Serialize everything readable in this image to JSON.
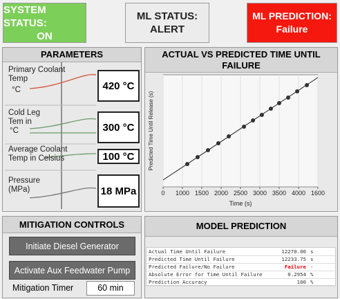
{
  "status": {
    "system": {
      "label": "SYSTEM STATUS:",
      "value": "ON"
    },
    "ml": {
      "label": "ML STATUS:",
      "value": "ALERT"
    },
    "prediction": {
      "label": "ML PREDICTION:",
      "value": "Failure"
    }
  },
  "parameters": {
    "title": "PARAMETERS",
    "items": [
      {
        "label": "Primary Coolant Temp",
        "unit": "°C",
        "value": "420 °C"
      },
      {
        "label": "Cold Leg Tem in",
        "unit": "°C",
        "value": "300 °C"
      },
      {
        "label": "Average Coolant Temp in Celsius",
        "value": "100 °C"
      },
      {
        "label": "Pressure (MPa)",
        "value": "18 MPa"
      }
    ]
  },
  "chart_data": {
    "type": "scatter",
    "title": "ACTUAL VS PREDICTED TIME UNTIL FAILURE",
    "x_label": "Time (s)",
    "y_label": "Predicted Time Until Release (s)",
    "x": [
      250,
      357,
      464,
      571,
      679,
      836,
      929,
      1021,
      1114,
      1200,
      1293,
      1386,
      1486
    ],
    "values": [
      326,
      425,
      523,
      622,
      721,
      859,
      948,
      1027,
      1116,
      1195,
      1274,
      1363,
      1452
    ],
    "color": "#333333",
    "xlim": [
      0,
      1600
    ],
    "ylim": [
      0,
      1600
    ],
    "xticks": [
      0,
      {
        "value": 200,
        "label": "1000"
      },
      {
        "value": 400,
        "label": "1500"
      },
      {
        "value": 600,
        "label": "2000"
      },
      {
        "value": 800,
        "label": "2500"
      },
      {
        "value": 1000,
        "label": "3000"
      },
      {
        "value": 1200,
        "label": "3500"
      },
      {
        "value": 1400,
        "label": "4000"
      },
      1600
    ],
    "grid": true
  },
  "mitigation": {
    "title": "MITIGATION CONTROLS",
    "buttons": [
      "Initiate Diesel Generator",
      "Activate Aux Feedwater Pump"
    ],
    "timer_label": "Mitigation Timer",
    "timer_value": "60 min"
  },
  "model_prediction": {
    "title": "MODEL PREDICTION",
    "rows": [
      [
        "Actual Time Until Failure",
        "12270.00",
        "s"
      ],
      [
        "Predicted Time Until Failure",
        "12233.75",
        "s"
      ],
      [
        "Predicted Failure/No Failure",
        "Failure",
        "-"
      ],
      [
        "Absolute Error for Time Until Failure",
        "0.2954",
        "%"
      ],
      [
        "Prediction Accuracy",
        "100",
        "%"
      ]
    ]
  }
}
